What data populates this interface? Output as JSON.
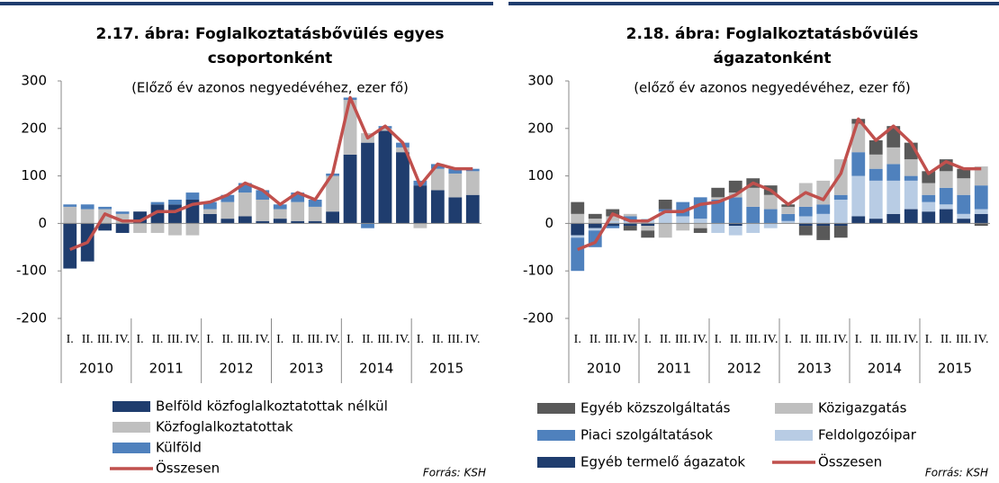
{
  "chart_data": [
    {
      "type": "bar",
      "stacked": true,
      "title": [
        "2.17. ábra: Foglalkoztatásbővülés egyes",
        "csoportonként"
      ],
      "subtitle": "(Előző év azonos negyedévéhez, ezer fő)",
      "source": "Forrás: KSH",
      "categories": [
        "I.",
        "II.",
        "III.",
        "IV.",
        "I.",
        "II.",
        "III.",
        "IV.",
        "I.",
        "II.",
        "III.",
        "IV.",
        "I.",
        "II.",
        "III.",
        "IV.",
        "I.",
        "II.",
        "III.",
        "IV.",
        "I.",
        "II.",
        "III.",
        "IV."
      ],
      "groups": [
        "2010",
        "2011",
        "2012",
        "2013",
        "2014",
        "2015"
      ],
      "ylim": [
        -200,
        300
      ],
      "yticks": [
        -200,
        -100,
        0,
        100,
        200,
        300
      ],
      "series": [
        {
          "name": "Belföld közfoglalkoztatottak nélkül",
          "color": "#1f3d6e",
          "values": [
            -95,
            -80,
            -15,
            -20,
            25,
            40,
            40,
            50,
            20,
            10,
            15,
            5,
            10,
            5,
            5,
            25,
            145,
            170,
            195,
            150,
            80,
            70,
            55,
            60
          ]
        },
        {
          "name": "Közfoglalkoztatottak",
          "color": "#bfbfbf",
          "values": [
            35,
            30,
            30,
            20,
            -20,
            -20,
            -25,
            -25,
            10,
            35,
            50,
            45,
            20,
            40,
            30,
            75,
            115,
            20,
            5,
            10,
            -10,
            45,
            50,
            50
          ]
        },
        {
          "name": "Külföld",
          "color": "#4f81bd",
          "values": [
            5,
            10,
            5,
            5,
            0,
            5,
            10,
            15,
            15,
            15,
            20,
            20,
            10,
            20,
            15,
            5,
            5,
            -10,
            5,
            10,
            10,
            10,
            10,
            5
          ]
        },
        {
          "name": "Összesen",
          "type": "line",
          "color": "#c0504d",
          "values": [
            -55,
            -40,
            20,
            5,
            5,
            25,
            25,
            40,
            45,
            60,
            85,
            70,
            40,
            65,
            50,
            105,
            265,
            180,
            205,
            170,
            80,
            125,
            115,
            115
          ]
        }
      ]
    },
    {
      "type": "bar",
      "stacked": true,
      "title": [
        "2.18. ábra: Foglalkoztatásbővülés",
        "ágazatonként"
      ],
      "subtitle": "(előző év azonos negyedévéhez, ezer fő)",
      "source": "Forrás: KSH",
      "categories": [
        "I.",
        "II.",
        "III.",
        "IV.",
        "I.",
        "II.",
        "III.",
        "IV.",
        "I.",
        "II.",
        "III.",
        "IV.",
        "I.",
        "II.",
        "III.",
        "IV.",
        "I.",
        "II.",
        "III.",
        "IV.",
        "I.",
        "II.",
        "III.",
        "IV."
      ],
      "groups": [
        "2010",
        "2011",
        "2012",
        "2013",
        "2014",
        "2015"
      ],
      "ylim": [
        -200,
        300
      ],
      "yticks": [
        -200,
        -100,
        0,
        100,
        200,
        300
      ],
      "series": [
        {
          "name": "Egyéb termelő ágazatok",
          "color": "#1f3d6e",
          "values": [
            -25,
            -10,
            -5,
            -5,
            -5,
            0,
            0,
            0,
            0,
            -5,
            0,
            0,
            0,
            -5,
            -5,
            -5,
            15,
            10,
            20,
            30,
            25,
            30,
            10,
            20
          ]
        },
        {
          "name": "Feldolgozóipar",
          "color": "#b8cce4",
          "values": [
            -5,
            -5,
            5,
            5,
            10,
            25,
            15,
            10,
            -20,
            -20,
            -20,
            -10,
            5,
            15,
            20,
            50,
            85,
            80,
            70,
            60,
            20,
            10,
            10,
            10
          ]
        },
        {
          "name": "Piaci szolgáltatások",
          "color": "#4f81bd",
          "values": [
            -70,
            -35,
            -5,
            10,
            0,
            5,
            30,
            45,
            50,
            55,
            35,
            30,
            15,
            20,
            20,
            10,
            50,
            25,
            35,
            10,
            15,
            35,
            40,
            50
          ]
        },
        {
          "name": "Közigazgatás",
          "color": "#bfbfbf",
          "values": [
            20,
            10,
            10,
            5,
            -10,
            -30,
            -15,
            -10,
            5,
            10,
            40,
            30,
            15,
            50,
            50,
            75,
            60,
            30,
            35,
            35,
            25,
            35,
            35,
            40
          ]
        },
        {
          "name": "Egyéb közszolgáltatás",
          "color": "#595959",
          "values": [
            25,
            10,
            15,
            -10,
            -15,
            20,
            0,
            -10,
            20,
            25,
            20,
            20,
            5,
            -20,
            -30,
            -25,
            10,
            30,
            45,
            35,
            25,
            25,
            20,
            -5
          ]
        },
        {
          "name": "Összesen",
          "type": "line",
          "color": "#c0504d",
          "values": [
            -55,
            -40,
            20,
            5,
            5,
            25,
            25,
            40,
            45,
            60,
            85,
            70,
            40,
            65,
            50,
            105,
            220,
            175,
            205,
            170,
            105,
            130,
            115,
            115
          ]
        }
      ]
    }
  ]
}
